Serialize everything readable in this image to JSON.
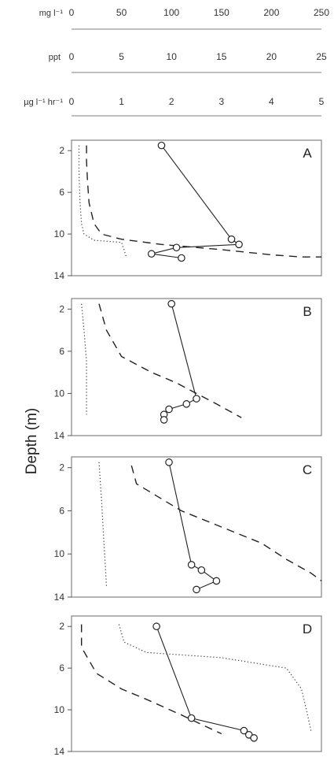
{
  "chart_data": {
    "type": "line",
    "ylabel": "Depth (m)",
    "top_axes": [
      {
        "label": "mg l⁻¹",
        "ticks": [
          "0",
          "50",
          "100",
          "150",
          "200",
          "250"
        ],
        "range": [
          0,
          250
        ]
      },
      {
        "label": "ppt",
        "ticks": [
          "0",
          "5",
          "10",
          "15",
          "20",
          "25"
        ],
        "range": [
          0,
          25
        ]
      },
      {
        "label": "µg l⁻¹ hr⁻¹",
        "ticks": [
          "0",
          "1",
          "2",
          "3",
          "4",
          "5"
        ],
        "range": [
          0,
          5
        ]
      }
    ],
    "depth_ticks": [
      "2",
      "6",
      "10",
      "14"
    ],
    "ylim": [
      1,
      14
    ],
    "panels": [
      {
        "letter": "A",
        "rate": [
          [
            1.8,
            1.5
          ],
          [
            3.2,
            10.5
          ],
          [
            3.35,
            11.0
          ],
          [
            2.1,
            11.3
          ],
          [
            1.6,
            11.9
          ],
          [
            2.2,
            12.3
          ]
        ],
        "dashed": [
          [
            0.3,
            1.5
          ],
          [
            0.3,
            3
          ],
          [
            0.32,
            5
          ],
          [
            0.35,
            7
          ],
          [
            0.45,
            9
          ],
          [
            0.6,
            10.0
          ],
          [
            1.0,
            10.5
          ],
          [
            1.8,
            11.0
          ],
          [
            3.0,
            11.5
          ],
          [
            4.0,
            12.0
          ],
          [
            4.6,
            12.2
          ],
          [
            5.0,
            12.2
          ]
        ],
        "dotted": [
          [
            0.15,
            1.5
          ],
          [
            0.15,
            4
          ],
          [
            0.17,
            7
          ],
          [
            0.2,
            9
          ],
          [
            0.25,
            10
          ],
          [
            0.45,
            10.6
          ],
          [
            1.0,
            10.8
          ],
          [
            1.05,
            11.5
          ],
          [
            1.1,
            12.3
          ]
        ]
      },
      {
        "letter": "B",
        "rate": [
          [
            2.0,
            1.5
          ],
          [
            2.5,
            10.5
          ],
          [
            2.3,
            11.0
          ],
          [
            1.95,
            11.5
          ],
          [
            1.85,
            12.0
          ],
          [
            1.85,
            12.5
          ]
        ],
        "dashed": [
          [
            0.55,
            1.5
          ],
          [
            0.7,
            4
          ],
          [
            1.0,
            6.5
          ],
          [
            1.6,
            8
          ],
          [
            2.1,
            9
          ],
          [
            2.5,
            10.0
          ],
          [
            2.9,
            11
          ],
          [
            3.4,
            12.3
          ]
        ],
        "dotted": [
          [
            0.2,
            1.5
          ],
          [
            0.25,
            4
          ],
          [
            0.3,
            7
          ],
          [
            0.3,
            9
          ],
          [
            0.3,
            12.0
          ]
        ]
      },
      {
        "letter": "C",
        "rate": [
          [
            1.95,
            1.5
          ],
          [
            2.4,
            11.0
          ],
          [
            2.6,
            11.5
          ],
          [
            2.9,
            12.5
          ],
          [
            2.5,
            13.3
          ]
        ],
        "dashed": [
          [
            1.2,
            1.8
          ],
          [
            1.3,
            3.5
          ],
          [
            2.2,
            6.0
          ],
          [
            3.0,
            7.5
          ],
          [
            3.8,
            9.0
          ],
          [
            4.3,
            10.5
          ],
          [
            4.8,
            11.8
          ],
          [
            5.0,
            12.5
          ]
        ],
        "dotted": [
          [
            0.55,
            1.5
          ],
          [
            0.6,
            5
          ],
          [
            0.65,
            9
          ],
          [
            0.7,
            13.0
          ]
        ]
      },
      {
        "letter": "D",
        "rate": [
          [
            1.7,
            2.0
          ],
          [
            2.4,
            10.8
          ],
          [
            3.45,
            12.0
          ],
          [
            3.55,
            12.4
          ],
          [
            3.65,
            12.7
          ]
        ],
        "dashed": [
          [
            0.2,
            1.8
          ],
          [
            0.2,
            4
          ],
          [
            0.5,
            6.5
          ],
          [
            1.0,
            8.0
          ],
          [
            1.5,
            9.0
          ],
          [
            2.2,
            10.5
          ],
          [
            3.0,
            12.3
          ]
        ],
        "dotted": [
          [
            0.95,
            1.8
          ],
          [
            1.05,
            3.5
          ],
          [
            1.5,
            4.5
          ],
          [
            3.0,
            5.0
          ],
          [
            4.3,
            6.0
          ],
          [
            4.6,
            8.0
          ],
          [
            4.7,
            10.0
          ],
          [
            4.8,
            12.2
          ]
        ]
      }
    ]
  }
}
